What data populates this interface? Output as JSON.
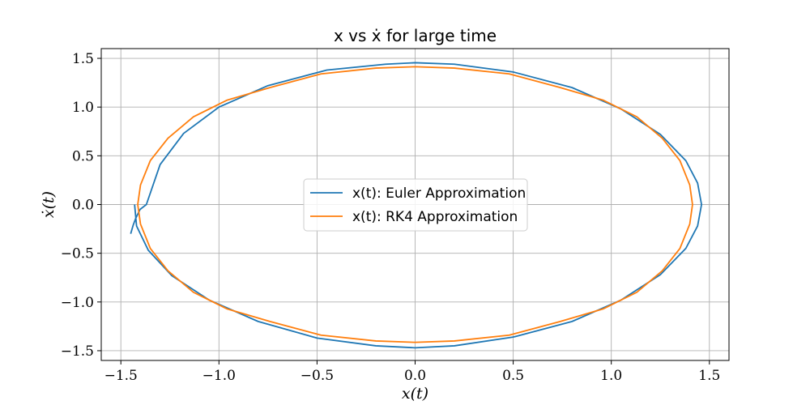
{
  "chart_data": {
    "type": "line",
    "title": "x vs ẋ for large time",
    "xlabel": "x(t)",
    "ylabel": "ẋ(t)",
    "xlim": [
      -1.6,
      1.6
    ],
    "ylim": [
      -1.6,
      1.6
    ],
    "xticks": [
      -1.5,
      -1.0,
      -0.5,
      0.0,
      0.5,
      1.0,
      1.5
    ],
    "yticks": [
      -1.5,
      -1.0,
      -0.5,
      0.0,
      0.5,
      1.0,
      1.5
    ],
    "xtick_labels": [
      "−1.5",
      "−1.0",
      "−0.5",
      "0.0",
      "0.5",
      "1.0",
      "1.5"
    ],
    "ytick_labels": [
      "−1.5",
      "−1.0",
      "−0.5",
      "0.0",
      "0.5",
      "1.0",
      "1.5"
    ],
    "grid": true,
    "legend_position": "center",
    "series": [
      {
        "name": "x(t): Euler Approximation",
        "color": "#1f77b4",
        "x": [
          -1.45,
          -1.437,
          -1.424,
          -1.402,
          -1.37,
          -1.3,
          -1.18,
          -1.0,
          -0.75,
          -0.45,
          -0.15,
          0.0,
          0.2,
          0.5,
          0.8,
          1.05,
          1.25,
          1.38,
          1.44,
          1.46,
          1.44,
          1.38,
          1.25,
          1.05,
          0.8,
          0.5,
          0.2,
          0.0,
          -0.2,
          -0.5,
          -0.8,
          -1.05,
          -1.24,
          -1.36,
          -1.42,
          -1.43
        ],
        "y": [
          -0.3,
          -0.21,
          -0.14,
          -0.05,
          0.0,
          0.41,
          0.73,
          1.0,
          1.22,
          1.38,
          1.44,
          1.455,
          1.44,
          1.36,
          1.2,
          0.98,
          0.72,
          0.45,
          0.22,
          0.0,
          -0.22,
          -0.45,
          -0.72,
          -0.98,
          -1.2,
          -1.36,
          -1.45,
          -1.47,
          -1.45,
          -1.37,
          -1.2,
          -0.98,
          -0.73,
          -0.47,
          -0.22,
          -0.0
        ]
      },
      {
        "name": "x(t): RK4 Approximation",
        "color": "#ff7f0e",
        "x": [
          -1.414,
          -1.4,
          -1.35,
          -1.26,
          -1.13,
          -0.96,
          -0.74,
          -0.48,
          -0.2,
          0.0,
          0.2,
          0.48,
          0.74,
          0.96,
          1.13,
          1.26,
          1.35,
          1.4,
          1.414,
          1.4,
          1.35,
          1.26,
          1.13,
          0.96,
          0.74,
          0.48,
          0.2,
          0.0,
          -0.2,
          -0.48,
          -0.74,
          -0.96,
          -1.13,
          -1.26,
          -1.35,
          -1.4,
          -1.414
        ],
        "y": [
          0.0,
          0.2,
          0.45,
          0.68,
          0.9,
          1.07,
          1.2,
          1.34,
          1.4,
          1.414,
          1.4,
          1.34,
          1.2,
          1.07,
          0.9,
          0.68,
          0.45,
          0.2,
          0.0,
          -0.2,
          -0.45,
          -0.68,
          -0.9,
          -1.07,
          -1.2,
          -1.34,
          -1.4,
          -1.414,
          -1.4,
          -1.34,
          -1.2,
          -1.07,
          -0.9,
          -0.68,
          -0.45,
          -0.2,
          0.0
        ]
      }
    ]
  }
}
